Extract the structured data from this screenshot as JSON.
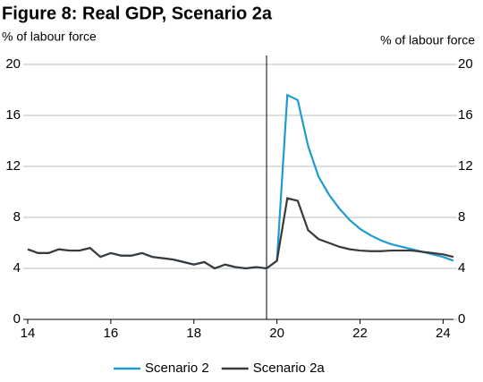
{
  "chart_data": {
    "type": "line",
    "title": "Figure 8: Real GDP, Scenario 2a",
    "y_label": "% of labour force",
    "y2_label": "% of labour force",
    "x": [
      14,
      14.25,
      14.5,
      14.75,
      15,
      15.25,
      15.5,
      15.75,
      16,
      16.25,
      16.5,
      16.75,
      17,
      17.25,
      17.5,
      17.75,
      18,
      18.25,
      18.5,
      18.75,
      19,
      19.25,
      19.5,
      19.75,
      20,
      20.25,
      20.5,
      20.75,
      21,
      21.25,
      21.5,
      21.75,
      22,
      22.25,
      22.5,
      22.75,
      23,
      23.25,
      23.5,
      23.75,
      24,
      24.25
    ],
    "series": [
      {
        "name": "Scenario 2",
        "color": "#1f9bd1",
        "values": [
          5.5,
          5.2,
          5.2,
          5.5,
          5.4,
          5.4,
          5.6,
          4.9,
          5.2,
          5.0,
          5.0,
          5.2,
          4.9,
          4.8,
          4.7,
          4.5,
          4.3,
          4.5,
          4.0,
          4.3,
          4.1,
          4.0,
          4.1,
          4.0,
          4.6,
          17.6,
          17.2,
          13.6,
          11.2,
          9.8,
          8.7,
          7.8,
          7.1,
          6.6,
          6.2,
          5.9,
          5.7,
          5.5,
          5.3,
          5.1,
          4.9,
          4.6
        ]
      },
      {
        "name": "Scenario 2a",
        "color": "#3a3a3c",
        "values": [
          5.5,
          5.2,
          5.2,
          5.5,
          5.4,
          5.4,
          5.6,
          4.9,
          5.2,
          5.0,
          5.0,
          5.2,
          4.9,
          4.8,
          4.7,
          4.5,
          4.3,
          4.5,
          4.0,
          4.3,
          4.1,
          4.0,
          4.1,
          4.0,
          4.6,
          9.5,
          9.3,
          7.0,
          6.3,
          6.0,
          5.7,
          5.5,
          5.4,
          5.35,
          5.35,
          5.4,
          5.4,
          5.4,
          5.3,
          5.2,
          5.1,
          4.9
        ]
      }
    ],
    "vline_x": 19.75,
    "xlim": [
      14,
      24.25
    ],
    "xticks": [
      14,
      16,
      18,
      20,
      22,
      24
    ],
    "ylim": [
      0,
      20
    ],
    "yticks": [
      0,
      4,
      8,
      12,
      16,
      20
    ],
    "y2lim": [
      0,
      20
    ],
    "y2ticks": [
      0,
      4,
      8,
      12,
      16,
      20
    ],
    "grid": true,
    "legend": "bottom"
  }
}
